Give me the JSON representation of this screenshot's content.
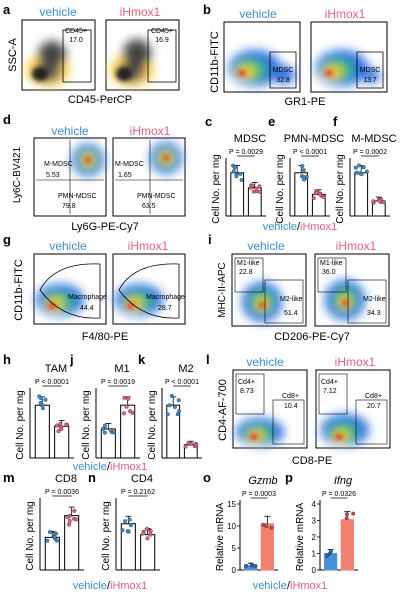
{
  "panels": {
    "a": {
      "letter": "a",
      "left_title": "vehicle",
      "right_title": "iHmox1",
      "ylabel": "SSC-A",
      "xlabel": "CD45-PerCP",
      "left_gate_label": "CD45+",
      "left_gate_value": "17.0",
      "right_gate_label": "CD45+",
      "right_gate_value": "16.9"
    },
    "b": {
      "letter": "b",
      "left_title": "vehicle",
      "right_title": "iHmox1",
      "ylabel": "CD11b-FITC",
      "xlabel": "GR1-PE",
      "left_gate_label": "MDSC",
      "left_gate_value": "32.8",
      "right_gate_label": "MDSC",
      "right_gate_value": "13.7"
    },
    "d": {
      "letter": "d",
      "left_title": "vehicle",
      "right_title": "iHmox1",
      "ylabel": "Ly6C-BV421",
      "xlabel": "Ly6G-PE-Cy7",
      "left_m_label": "M-MDSC",
      "left_m_value": "5.53",
      "left_pmn_label": "PMN-MDSC",
      "left_pmn_value": "79.8",
      "right_m_label": "M-MDSC",
      "right_m_value": "1.65",
      "right_pmn_label": "PMN-MDSC",
      "right_pmn_value": "63.5"
    },
    "g": {
      "letter": "g",
      "left_title": "vehicle",
      "right_title": "iHmox1",
      "ylabel": "CD11b-FITC",
      "xlabel": "F4/80-PE",
      "left_gate_label": "Macrophage",
      "left_gate_value": "44.4",
      "right_gate_label": "Macrophage",
      "right_gate_value": "28.7"
    },
    "i": {
      "letter": "i",
      "left_title": "vehicle",
      "right_title": "iHmox1",
      "ylabel": "MHC-II-APC",
      "xlabel": "CD206-PE-Cy7",
      "left_m1_label": "M1-like",
      "left_m1_value": "22.8",
      "left_m2_label": "M2-like",
      "left_m2_value": "51.4",
      "right_m1_label": "M1-like",
      "right_m1_value": "36.0",
      "right_m2_label": "M2-like",
      "right_m2_value": "34.3"
    },
    "l": {
      "letter": "l",
      "left_title": "vehicle",
      "right_title": "iHmox1",
      "ylabel": "CD4-AF-700",
      "xlabel": "CD8-PE",
      "left_cd4_label": "Cd4+",
      "left_cd4_value": "8.73",
      "left_cd8_label": "Cd8+",
      "left_cd8_value": "10.4",
      "right_cd4_label": "Cd4+",
      "right_cd4_value": "7.12",
      "right_cd8_label": "Cd8+",
      "right_cd8_value": "20.7"
    }
  },
  "legend": {
    "vehicle": "vehicle",
    "slash": "/",
    "ihmox1": "iHmox1"
  },
  "colors": {
    "vehicle": "#3b8fd0",
    "ihmox1": "#e8607a",
    "bar_vehicle": "#ffffff",
    "bar_ihmox1": "#ffffff",
    "qpcr_vehicle": "#4a90d9",
    "qpcr_ihmox1": "#f08070"
  },
  "chart_data": [
    {
      "type": "bar",
      "panel": "c",
      "title": "MDSC",
      "ylabel": "Cell No. per mg",
      "categories": [
        "vehicle",
        "iHmox1"
      ],
      "values": [
        1.0,
        0.65
      ],
      "pvalue": "P = 0.0029"
    },
    {
      "type": "bar",
      "panel": "e",
      "title": "PMN-MDSC",
      "ylabel": "Cell No. per mg",
      "categories": [
        "vehicle",
        "iHmox1"
      ],
      "values": [
        1.0,
        0.5
      ],
      "pvalue": "P < 0.0001"
    },
    {
      "type": "bar",
      "panel": "f",
      "title": "M-MDSC",
      "ylabel": "Cell No. per mg",
      "categories": [
        "vehicle",
        "iHmox1"
      ],
      "values": [
        1.0,
        0.35
      ],
      "pvalue": "P = 0.0002"
    },
    {
      "type": "bar",
      "panel": "h",
      "title": "TAM",
      "ylabel": "Cell No. per mg",
      "categories": [
        "vehicle",
        "iHmox1"
      ],
      "values": [
        1.0,
        0.6
      ],
      "pvalue": "P < 0.0001"
    },
    {
      "type": "bar",
      "panel": "j",
      "title": "M1",
      "ylabel": "Cell No. per mg",
      "categories": [
        "vehicle",
        "iHmox1"
      ],
      "values": [
        0.55,
        1.0
      ],
      "pvalue": "P = 0.0019"
    },
    {
      "type": "bar",
      "panel": "k",
      "title": "M2",
      "ylabel": "Cell No. per mg",
      "categories": [
        "vehicle",
        "iHmox1"
      ],
      "values": [
        1.0,
        0.25
      ],
      "pvalue": "P < 0.0001"
    },
    {
      "type": "bar",
      "panel": "m",
      "title": "CD8",
      "ylabel": "Cell No. per mg",
      "categories": [
        "vehicle",
        "iHmox1"
      ],
      "values": [
        0.6,
        1.0
      ],
      "pvalue": "P = 0.0036"
    },
    {
      "type": "bar",
      "panel": "n",
      "title": "CD4",
      "ylabel": "Cell No. per mg",
      "categories": [
        "vehicle",
        "iHmox1"
      ],
      "values": [
        0.85,
        0.65
      ],
      "pvalue": "P = 0.2162"
    },
    {
      "type": "bar",
      "panel": "o",
      "title": "Gzmb",
      "ylabel": "Relative mRNA",
      "categories": [
        "vehicle",
        "iHmox1"
      ],
      "values": [
        1,
        10.5
      ],
      "ylim": [
        0,
        15
      ],
      "yticks": [
        0,
        5,
        10,
        15
      ],
      "pvalue": "P = 0.0003"
    },
    {
      "type": "bar",
      "panel": "p",
      "title": "Ifng",
      "ylabel": "Relative mRNA",
      "categories": [
        "vehicle",
        "iHmox1"
      ],
      "values": [
        1,
        3.05
      ],
      "ylim": [
        0,
        4
      ],
      "yticks": [
        0,
        1,
        2,
        3,
        4
      ],
      "pvalue": "P = 0.0326"
    }
  ]
}
